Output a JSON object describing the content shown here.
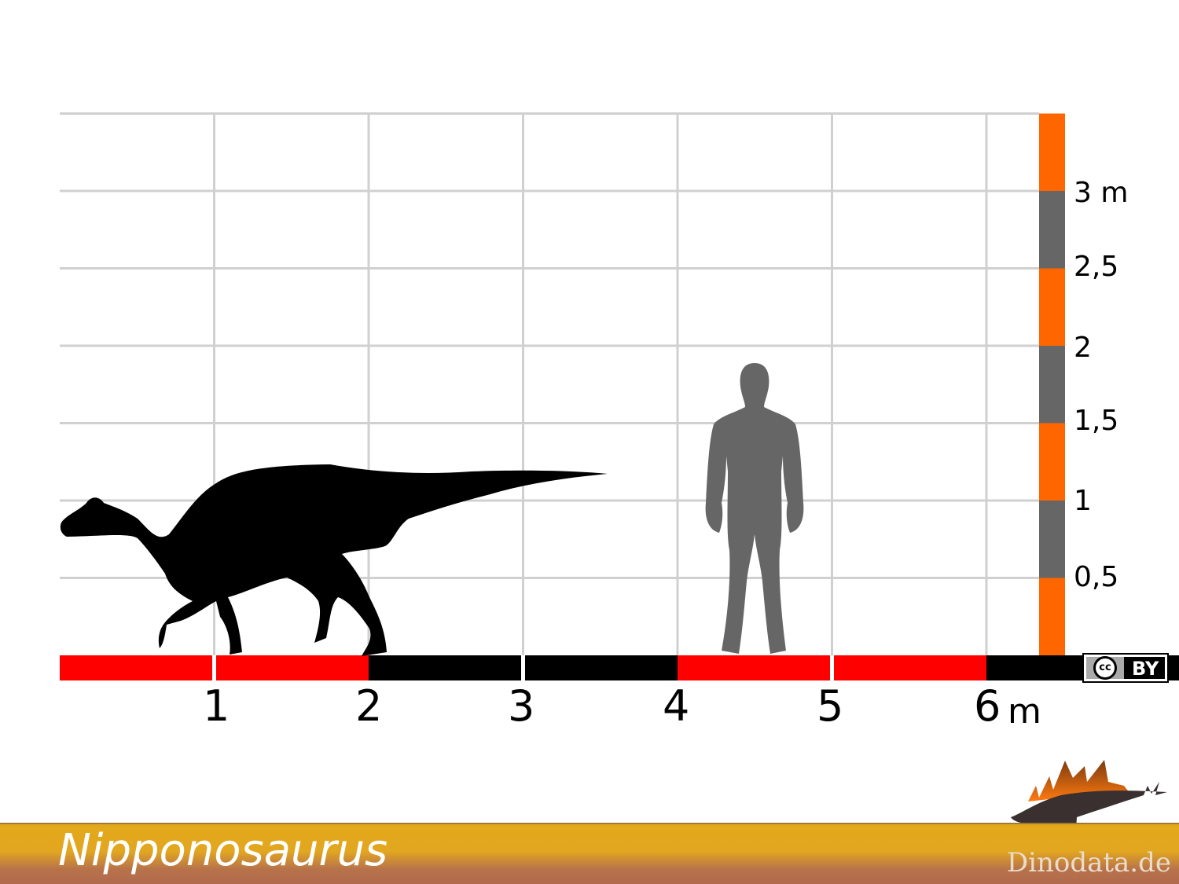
{
  "title": "Nipponosaurus",
  "brand": "Dinodata.de",
  "license_badge": {
    "cc": "cc",
    "by": "BY"
  },
  "x_axis": {
    "labels": [
      "1",
      "2",
      "3",
      "4",
      "5",
      "6"
    ],
    "unit": "m",
    "range_m": [
      0,
      6.5
    ]
  },
  "y_axis": {
    "labels": [
      "0,5",
      "1",
      "1,5",
      "2",
      "2,5",
      "3 m"
    ],
    "range_m": [
      0,
      3.5
    ]
  },
  "colors": {
    "red": "#ff0000",
    "orange": "#ff6600",
    "gray_bar": "#666666",
    "human": "#666666",
    "dinosaur": "#000000",
    "grid": "#d0d0d0"
  },
  "figures": [
    {
      "name": "dinosaur",
      "icon": "hadrosaur-silhouette",
      "length_m": 3.55,
      "height_m": 1.25
    },
    {
      "name": "human",
      "icon": "human-silhouette",
      "height_m": 1.8
    }
  ]
}
